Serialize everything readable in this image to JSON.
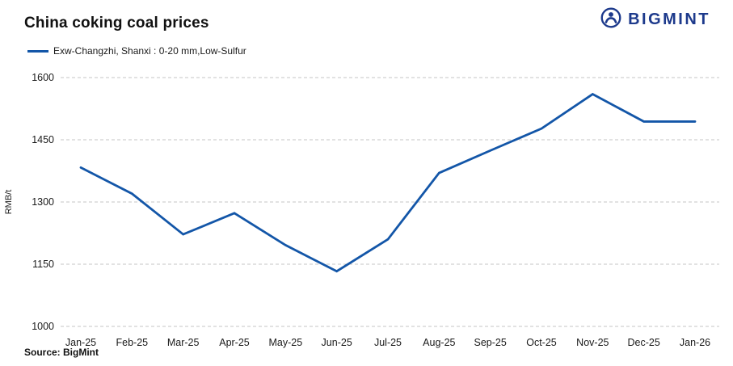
{
  "header": {
    "title": "China coking coal prices",
    "brand": "BIGMINT"
  },
  "legend": {
    "label": "Exw-Changzhi, Shanxi : 0-20 mm,Low-Sulfur"
  },
  "source": "Source: BigMint",
  "colors": {
    "line": "#1356a8",
    "brand": "#1d3a8c",
    "grid": "#c4c4c4",
    "axis_text": "#1a1a1a"
  },
  "chart_data": {
    "type": "line",
    "categories": [
      "Jan-25",
      "Feb-25",
      "Mar-25",
      "Apr-25",
      "May-25",
      "Jun-25",
      "Jul-25",
      "Aug-25",
      "Sep-25",
      "Oct-25",
      "Nov-25",
      "Dec-25",
      "Jan-26"
    ],
    "series": [
      {
        "name": "Exw-Changzhi, Shanxi : 0-20 mm,Low-Sulfur",
        "values": [
          1383,
          1320,
          1222,
          1273,
          1196,
          1133,
          1210,
          1370,
          1424,
          1477,
          1560,
          1494,
          1494
        ]
      }
    ],
    "title": "China coking coal prices",
    "xlabel": "",
    "ylabel": "RMB/t",
    "ylim": [
      1000,
      1600
    ],
    "yticks": [
      1000,
      1150,
      1300,
      1450,
      1600
    ],
    "grid": true,
    "grid_style": "dashed",
    "legend_position": "top-left"
  }
}
